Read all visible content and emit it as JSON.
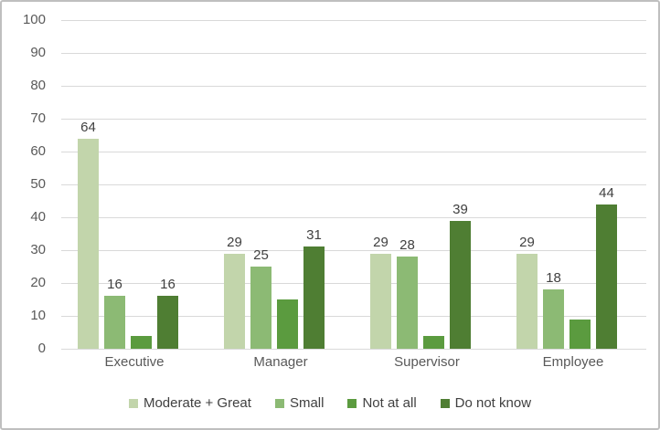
{
  "chart_data": {
    "type": "bar",
    "title": "",
    "xlabel": "",
    "ylabel": "",
    "categories": [
      "Executive",
      "Manager",
      "Supervisor",
      "Employee"
    ],
    "series": [
      {
        "name": "Moderate + Great",
        "color": "#c2d5ab",
        "values": [
          64,
          29,
          29,
          29
        ],
        "data_labels": true
      },
      {
        "name": "Small",
        "color": "#8cba74",
        "values": [
          16,
          25,
          28,
          18
        ],
        "data_labels": true
      },
      {
        "name": "Not at all",
        "color": "#5b9b3f",
        "values": [
          4,
          15,
          4,
          9
        ],
        "data_labels": false
      },
      {
        "name": "Do not know",
        "color": "#4f7e33",
        "values": [
          16,
          31,
          39,
          44
        ],
        "data_labels": true
      }
    ],
    "ylim": [
      0,
      100
    ],
    "ytick_step": 10,
    "grid": true,
    "legend_position": "bottom"
  },
  "style": {
    "background": "#ffffff",
    "frame_border_color": "#bfbfbf",
    "grid_color": "#d9d9d9",
    "axis_text_color": "#595959",
    "data_label_color": "#404040"
  }
}
